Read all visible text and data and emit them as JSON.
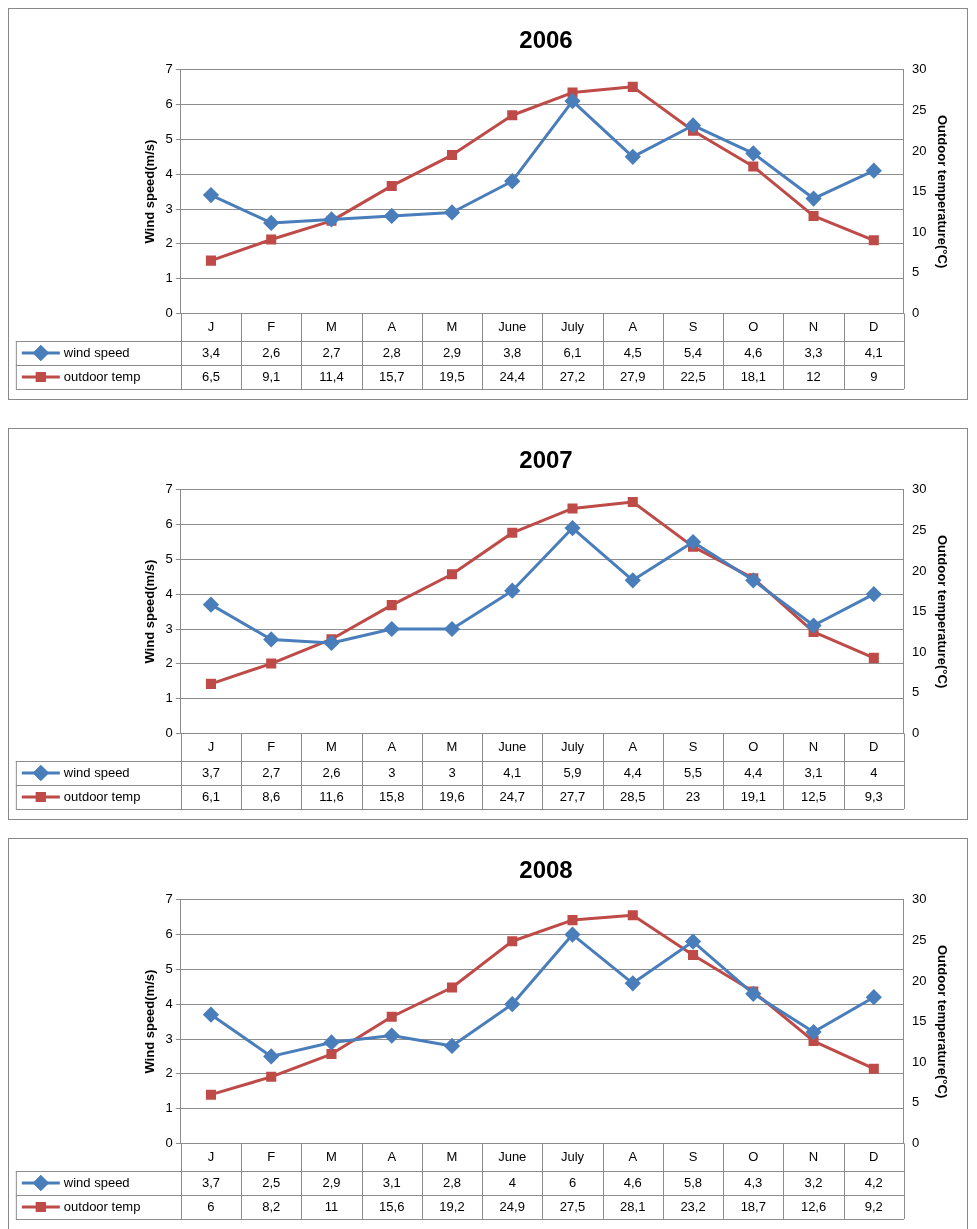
{
  "chart_data": [
    {
      "type": "line",
      "title": "2006",
      "categories": [
        "J",
        "F",
        "M",
        "A",
        "M",
        "June",
        "July",
        "A",
        "S",
        "O",
        "N",
        "D"
      ],
      "ylabel": "Wind speed(m/s)",
      "y2label": "Outdoor temperature(°C)",
      "ylim": [
        0,
        7
      ],
      "yticks": [
        0,
        1,
        2,
        3,
        4,
        5,
        6,
        7
      ],
      "y2lim": [
        0,
        30
      ],
      "y2ticks": [
        0,
        5,
        10,
        15,
        20,
        25,
        30
      ],
      "grid": "y",
      "legend": "bottom",
      "series": [
        {
          "name": "wind speed",
          "color": "#4a7ebb",
          "marker": "diamond",
          "values": [
            3.4,
            2.6,
            2.7,
            2.8,
            2.9,
            3.8,
            6.1,
            4.5,
            5.4,
            4.6,
            3.3,
            4.1
          ],
          "value_labels": [
            "3,4",
            "2,6",
            "2,7",
            "2,8",
            "2,9",
            "3,8",
            "6,1",
            "4,5",
            "5,4",
            "4,6",
            "3,3",
            "4,1"
          ]
        },
        {
          "name": "outdoor temp",
          "color": "#be4b48",
          "marker": "square",
          "axis": "y2",
          "values": [
            6.5,
            9.1,
            11.4,
            15.7,
            19.5,
            24.4,
            27.2,
            27.9,
            22.5,
            18.1,
            12,
            9
          ],
          "value_labels": [
            "6,5",
            "9,1",
            "11,4",
            "15,7",
            "19,5",
            "24,4",
            "27,2",
            "27,9",
            "22,5",
            "18,1",
            "12",
            "9"
          ]
        }
      ]
    },
    {
      "type": "line",
      "title": "2007",
      "categories": [
        "J",
        "F",
        "M",
        "A",
        "M",
        "June",
        "July",
        "A",
        "S",
        "O",
        "N",
        "D"
      ],
      "ylabel": "Wind speed(m/s)",
      "y2label": "Outdoor temperature(°C)",
      "ylim": [
        0,
        7
      ],
      "yticks": [
        0,
        1,
        2,
        3,
        4,
        5,
        6,
        7
      ],
      "y2lim": [
        0,
        30
      ],
      "y2ticks": [
        0,
        5,
        10,
        15,
        20,
        25,
        30
      ],
      "grid": "y",
      "legend": "bottom",
      "series": [
        {
          "name": "wind speed",
          "color": "#4a7ebb",
          "marker": "diamond",
          "values": [
            3.7,
            2.7,
            2.6,
            3,
            3,
            4.1,
            5.9,
            4.4,
            5.5,
            4.4,
            3.1,
            4
          ],
          "value_labels": [
            "3,7",
            "2,7",
            "2,6",
            "3",
            "3",
            "4,1",
            "5,9",
            "4,4",
            "5,5",
            "4,4",
            "3,1",
            "4"
          ]
        },
        {
          "name": "outdoor temp",
          "color": "#be4b48",
          "marker": "square",
          "axis": "y2",
          "values": [
            6.1,
            8.6,
            11.6,
            15.8,
            19.6,
            24.7,
            27.7,
            28.5,
            23,
            19.1,
            12.5,
            9.3
          ],
          "value_labels": [
            "6,1",
            "8,6",
            "11,6",
            "15,8",
            "19,6",
            "24,7",
            "27,7",
            "28,5",
            "23",
            "19,1",
            "12,5",
            "9,3"
          ]
        }
      ]
    },
    {
      "type": "line",
      "title": "2008",
      "categories": [
        "J",
        "F",
        "M",
        "A",
        "M",
        "June",
        "July",
        "A",
        "S",
        "O",
        "N",
        "D"
      ],
      "ylabel": "Wind speed(m/s)",
      "y2label": "Outdoor temperature(°C)",
      "ylim": [
        0,
        7
      ],
      "yticks": [
        0,
        1,
        2,
        3,
        4,
        5,
        6,
        7
      ],
      "y2lim": [
        0,
        30
      ],
      "y2ticks": [
        0,
        5,
        10,
        15,
        20,
        25,
        30
      ],
      "grid": "y",
      "legend": "bottom",
      "series": [
        {
          "name": "wind speed",
          "color": "#4a7ebb",
          "marker": "diamond",
          "values": [
            3.7,
            2.5,
            2.9,
            3.1,
            2.8,
            4,
            6,
            4.6,
            5.8,
            4.3,
            3.2,
            4.2
          ],
          "value_labels": [
            "3,7",
            "2,5",
            "2,9",
            "3,1",
            "2,8",
            "4",
            "6",
            "4,6",
            "5,8",
            "4,3",
            "3,2",
            "4,2"
          ]
        },
        {
          "name": "outdoor temp",
          "color": "#be4b48",
          "marker": "square",
          "axis": "y2",
          "values": [
            6,
            8.2,
            11,
            15.6,
            19.2,
            24.9,
            27.5,
            28.1,
            23.2,
            18.7,
            12.6,
            9.2
          ],
          "value_labels": [
            "6",
            "8,2",
            "11",
            "15,6",
            "19,2",
            "24,9",
            "27,5",
            "28,1",
            "23,2",
            "18,7",
            "12,6",
            "9,2"
          ]
        }
      ]
    }
  ]
}
